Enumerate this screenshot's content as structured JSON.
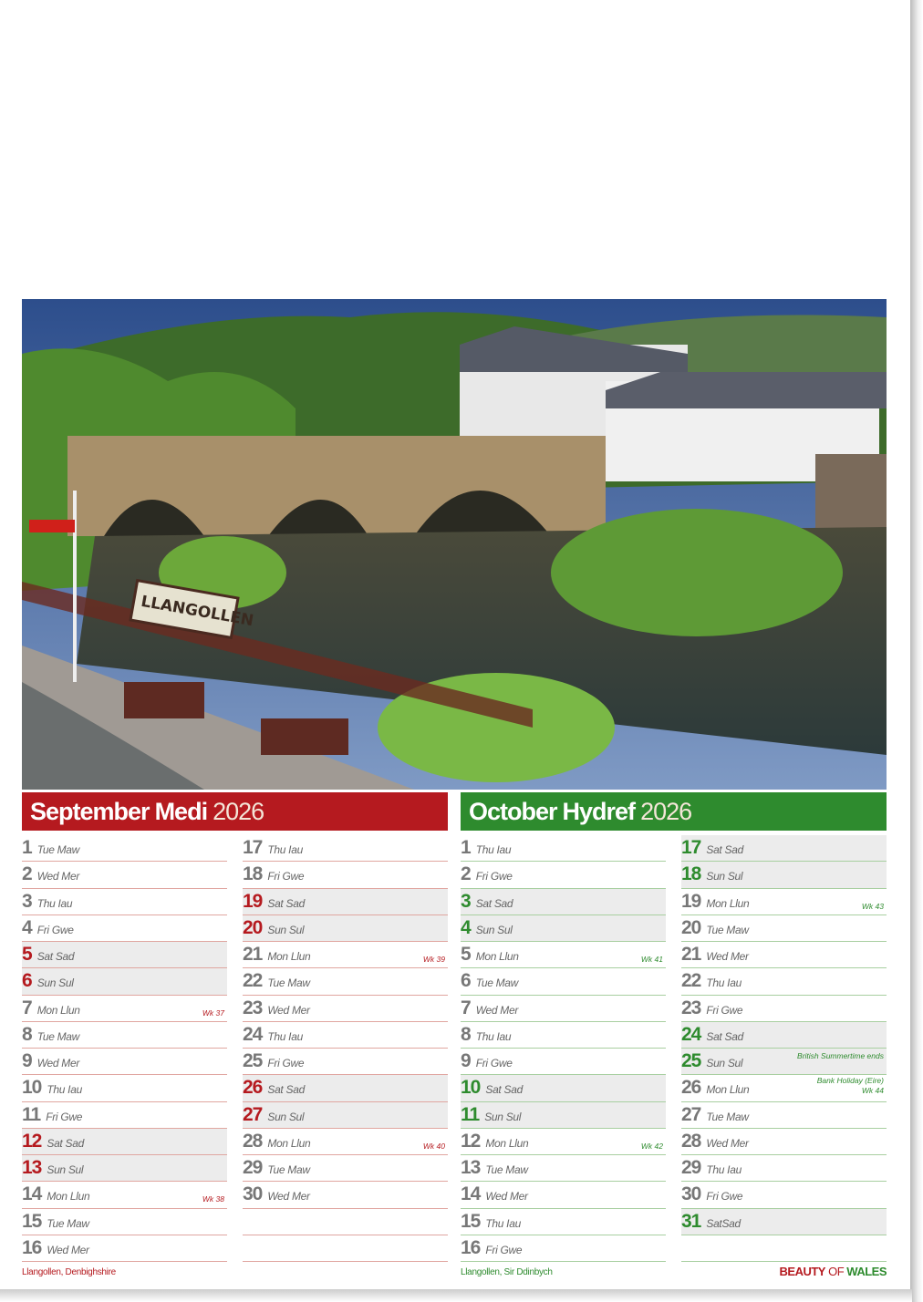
{
  "colors": {
    "september": "#b51a1f",
    "october": "#2e8b2e"
  },
  "photo": {
    "sign_text": "LLANGOLLEN"
  },
  "months": [
    {
      "key": "sep",
      "name": "September",
      "welsh": "Medi",
      "year": "2026",
      "caption": "Llangollen, Denbighshire",
      "days": [
        {
          "d": "1",
          "n": "Tue Maw"
        },
        {
          "d": "2",
          "n": "Wed Mer"
        },
        {
          "d": "3",
          "n": "Thu Iau"
        },
        {
          "d": "4",
          "n": "Fri Gwe"
        },
        {
          "d": "5",
          "n": "Sat Sad",
          "we": true
        },
        {
          "d": "6",
          "n": "Sun Sul",
          "we": true
        },
        {
          "d": "7",
          "n": "Mon Llun",
          "note": "Wk 37"
        },
        {
          "d": "8",
          "n": "Tue Maw"
        },
        {
          "d": "9",
          "n": "Wed Mer"
        },
        {
          "d": "10",
          "n": "Thu Iau"
        },
        {
          "d": "11",
          "n": "Fri Gwe"
        },
        {
          "d": "12",
          "n": "Sat Sad",
          "we": true
        },
        {
          "d": "13",
          "n": "Sun Sul",
          "we": true
        },
        {
          "d": "14",
          "n": "Mon Llun",
          "note": "Wk 38"
        },
        {
          "d": "15",
          "n": "Tue Maw"
        },
        {
          "d": "16",
          "n": "Wed Mer"
        },
        {
          "d": "17",
          "n": "Thu Iau"
        },
        {
          "d": "18",
          "n": "Fri Gwe"
        },
        {
          "d": "19",
          "n": "Sat Sad",
          "we": true
        },
        {
          "d": "20",
          "n": "Sun Sul",
          "we": true
        },
        {
          "d": "21",
          "n": "Mon Llun",
          "note": "Wk 39"
        },
        {
          "d": "22",
          "n": "Tue Maw"
        },
        {
          "d": "23",
          "n": "Wed Mer"
        },
        {
          "d": "24",
          "n": "Thu Iau"
        },
        {
          "d": "25",
          "n": "Fri Gwe"
        },
        {
          "d": "26",
          "n": "Sat Sad",
          "we": true
        },
        {
          "d": "27",
          "n": "Sun Sul",
          "we": true
        },
        {
          "d": "28",
          "n": "Mon Llun",
          "note": "Wk 40"
        },
        {
          "d": "29",
          "n": "Tue Maw"
        },
        {
          "d": "30",
          "n": "Wed Mer"
        }
      ]
    },
    {
      "key": "oct",
      "name": "October",
      "welsh": "Hydref",
      "year": "2026",
      "caption": "Llangollen, Sir Ddinbych",
      "days": [
        {
          "d": "1",
          "n": "Thu Iau"
        },
        {
          "d": "2",
          "n": "Fri Gwe"
        },
        {
          "d": "3",
          "n": "Sat Sad",
          "we": true
        },
        {
          "d": "4",
          "n": "Sun Sul",
          "we": true
        },
        {
          "d": "5",
          "n": "Mon Llun",
          "note": "Wk 41"
        },
        {
          "d": "6",
          "n": "Tue Maw"
        },
        {
          "d": "7",
          "n": "Wed Mer"
        },
        {
          "d": "8",
          "n": "Thu Iau"
        },
        {
          "d": "9",
          "n": "Fri Gwe"
        },
        {
          "d": "10",
          "n": "Sat Sad",
          "we": true
        },
        {
          "d": "11",
          "n": "Sun Sul",
          "we": true
        },
        {
          "d": "12",
          "n": "Mon Llun",
          "note": "Wk 42"
        },
        {
          "d": "13",
          "n": "Tue Maw"
        },
        {
          "d": "14",
          "n": "Wed Mer"
        },
        {
          "d": "15",
          "n": "Thu Iau"
        },
        {
          "d": "16",
          "n": "Fri Gwe"
        },
        {
          "d": "17",
          "n": "Sat Sad",
          "we": true
        },
        {
          "d": "18",
          "n": "Sun Sul",
          "we": true
        },
        {
          "d": "19",
          "n": "Mon Llun",
          "note": "Wk 43"
        },
        {
          "d": "20",
          "n": "Tue Maw"
        },
        {
          "d": "21",
          "n": "Wed Mer"
        },
        {
          "d": "22",
          "n": "Thu Iau"
        },
        {
          "d": "23",
          "n": "Fri Gwe"
        },
        {
          "d": "24",
          "n": "Sat Sad",
          "we": true
        },
        {
          "d": "25",
          "n": "Sun Sul",
          "we": true,
          "note": "British Summertime ends"
        },
        {
          "d": "26",
          "n": "Mon Llun",
          "note": "Bank Holiday (Eire)\nWk 44"
        },
        {
          "d": "27",
          "n": "Tue Maw"
        },
        {
          "d": "28",
          "n": "Wed Mer"
        },
        {
          "d": "29",
          "n": "Thu Iau"
        },
        {
          "d": "30",
          "n": "Fri Gwe"
        },
        {
          "d": "31",
          "n": "SatSad",
          "we": true
        }
      ]
    }
  ],
  "brand": {
    "part1": "BEAUTY",
    "part2": " OF ",
    "part3": "WALES"
  }
}
